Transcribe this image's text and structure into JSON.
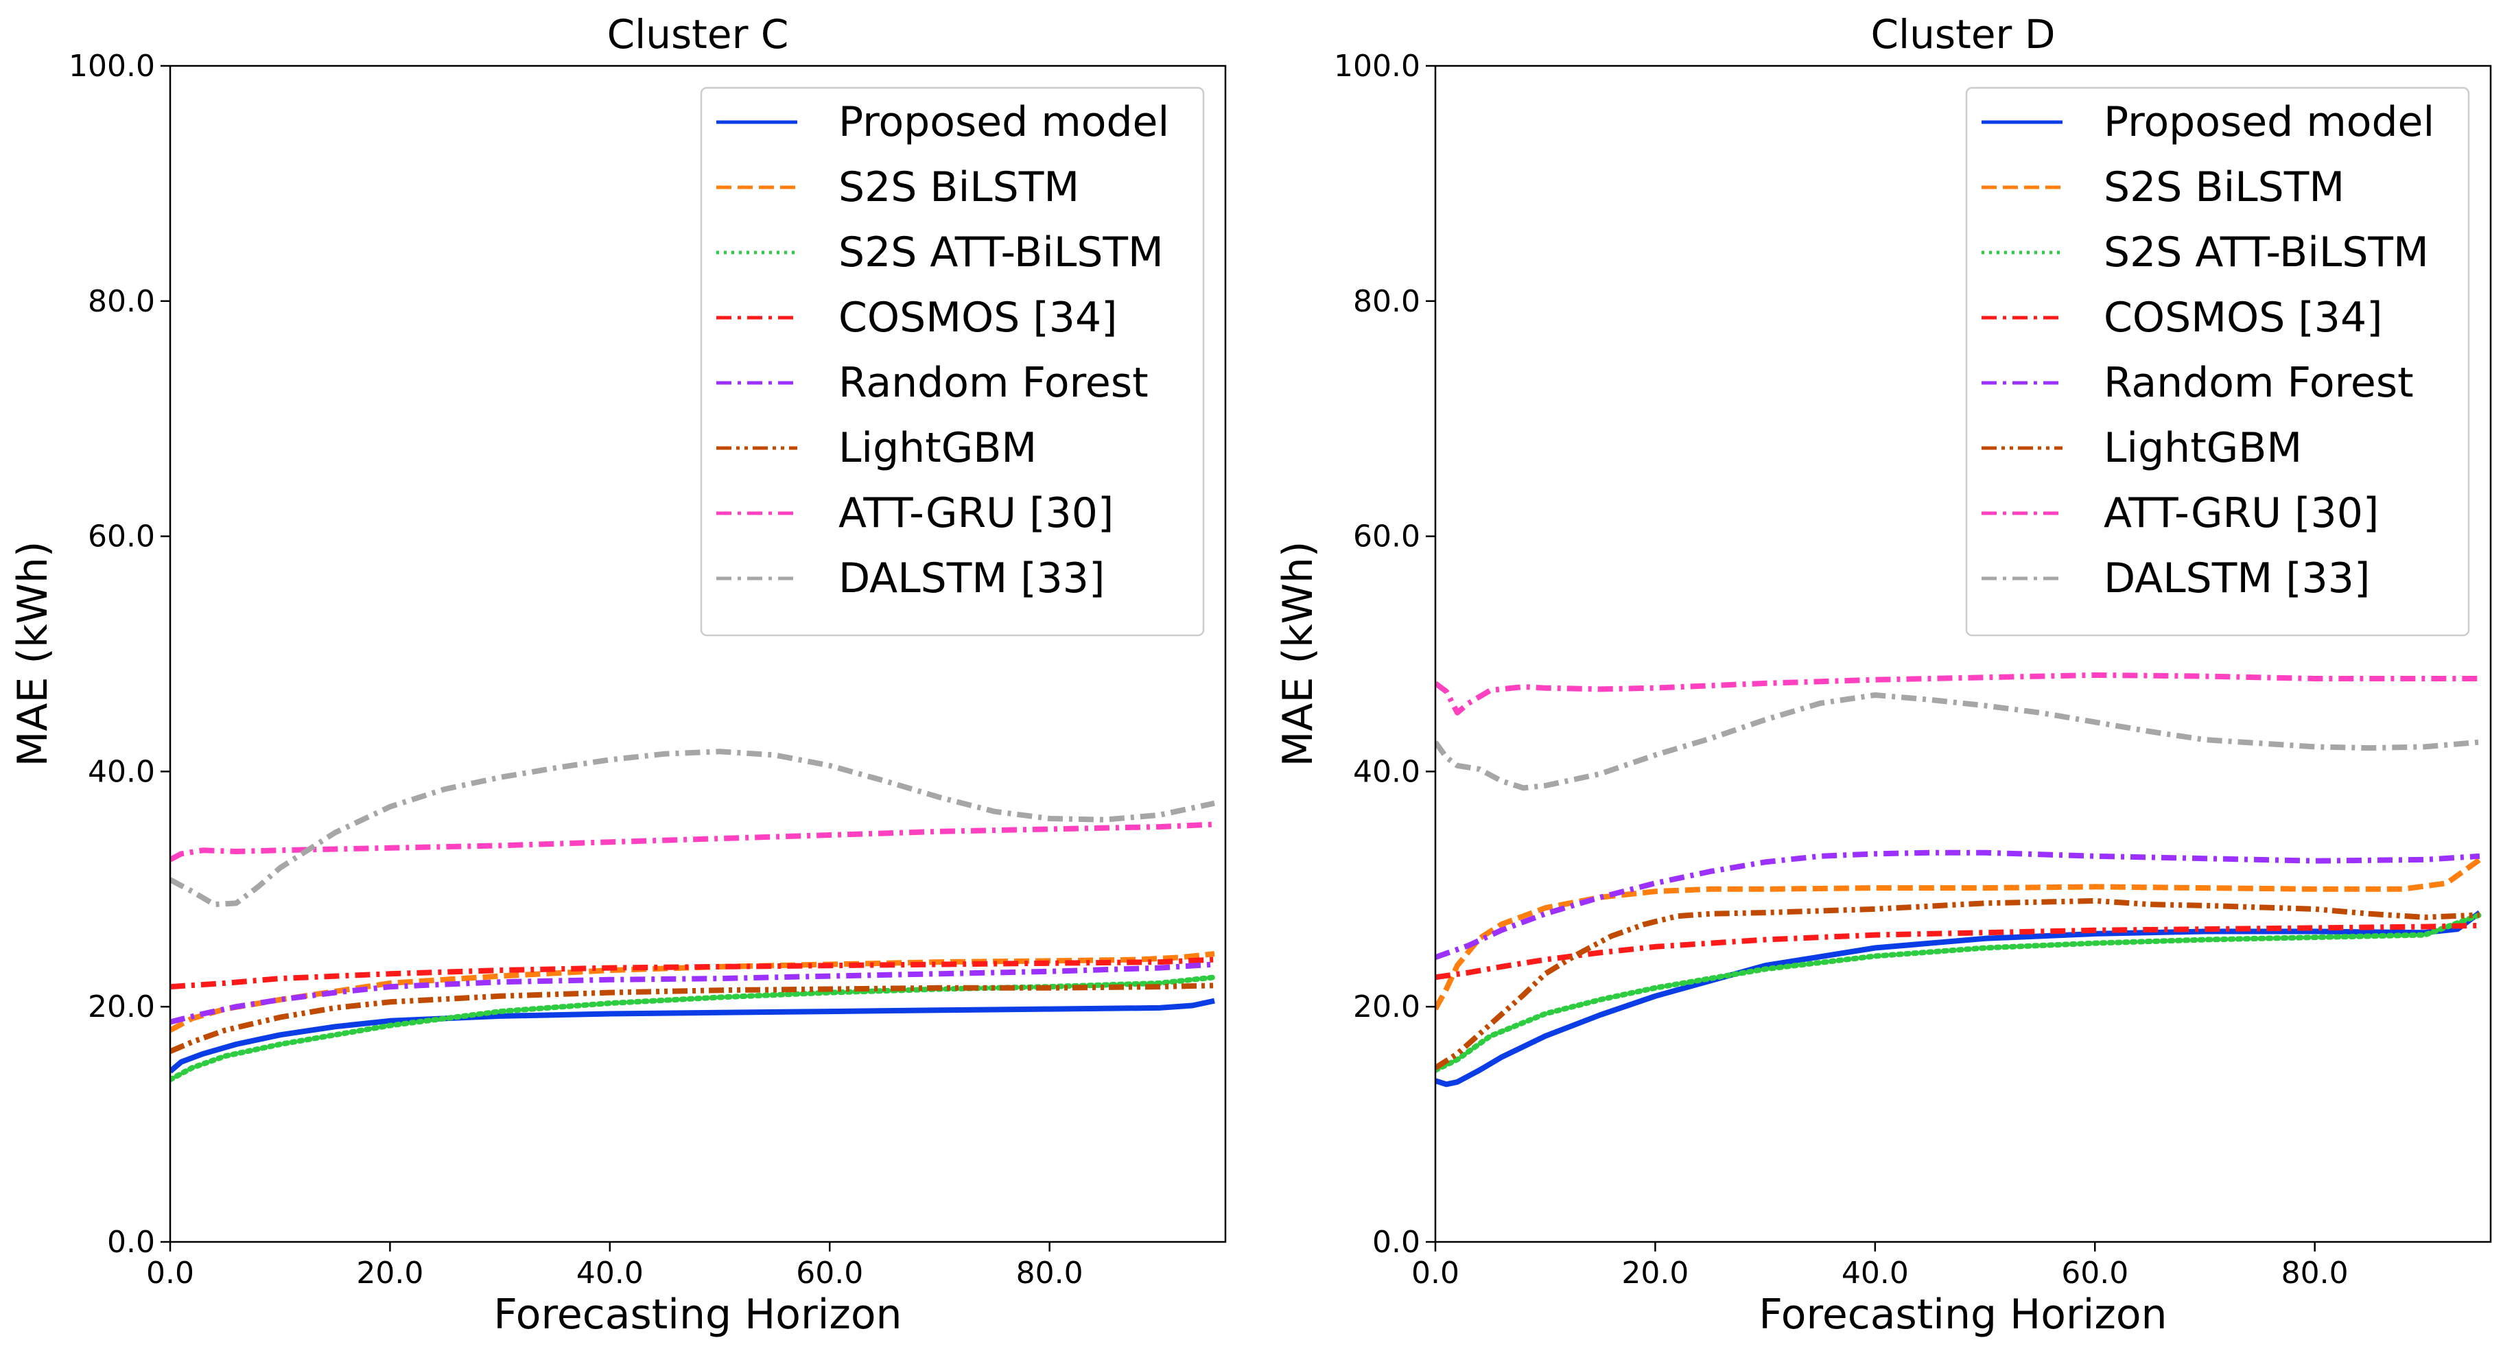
{
  "chart_data": [
    {
      "type": "line",
      "title": "Cluster C",
      "xlabel": "Forecasting Horizon",
      "ylabel": "MAE (kWh)",
      "xlim": [
        0,
        96
      ],
      "ylim": [
        0,
        100
      ],
      "xticks": [
        "0.0",
        "20.0",
        "40.0",
        "60.0",
        "80.0"
      ],
      "yticks": [
        "0.0",
        "20.0",
        "40.0",
        "60.0",
        "80.0",
        "100.0"
      ],
      "grid": false,
      "legend": "top-right",
      "series": [
        {
          "name": "Proposed model",
          "color": "#0a3de6",
          "style": "solid",
          "x": [
            0,
            1,
            3,
            6,
            10,
            15,
            20,
            30,
            40,
            50,
            60,
            70,
            80,
            90,
            93,
            95
          ],
          "y": [
            14.5,
            15.3,
            16.0,
            16.8,
            17.6,
            18.3,
            18.8,
            19.2,
            19.4,
            19.5,
            19.6,
            19.7,
            19.8,
            19.9,
            20.1,
            20.5
          ]
        },
        {
          "name": "S2S BiLSTM",
          "color": "#ff7f0e",
          "style": "dashed",
          "x": [
            0,
            2,
            5,
            10,
            15,
            20,
            30,
            40,
            50,
            60,
            70,
            80,
            88,
            92,
            95
          ],
          "y": [
            18.0,
            19.0,
            19.8,
            20.6,
            21.3,
            22.0,
            22.6,
            23.1,
            23.4,
            23.6,
            23.8,
            23.9,
            24.0,
            24.2,
            24.5
          ]
        },
        {
          "name": "S2S ATT-BiLSTM",
          "color": "#2ecc40",
          "style": "dotted",
          "x": [
            0,
            2,
            5,
            10,
            15,
            20,
            30,
            40,
            50,
            60,
            70,
            80,
            90,
            95
          ],
          "y": [
            13.8,
            14.8,
            15.8,
            16.8,
            17.6,
            18.4,
            19.6,
            20.3,
            20.8,
            21.2,
            21.5,
            21.7,
            22.0,
            22.5
          ]
        },
        {
          "name": "COSMOS [34]",
          "color": "#ff1a1a",
          "style": "dashdot",
          "x": [
            0,
            5,
            10,
            20,
            30,
            40,
            50,
            60,
            70,
            80,
            90,
            95
          ],
          "y": [
            21.7,
            22.0,
            22.4,
            22.8,
            23.1,
            23.3,
            23.4,
            23.5,
            23.6,
            23.7,
            23.8,
            24.0
          ]
        },
        {
          "name": "Random Forest",
          "color": "#9b30ff",
          "style": "dashdot",
          "x": [
            0,
            3,
            6,
            10,
            15,
            20,
            30,
            40,
            50,
            60,
            70,
            80,
            90,
            95
          ],
          "y": [
            18.7,
            19.4,
            20.0,
            20.6,
            21.2,
            21.7,
            22.1,
            22.3,
            22.4,
            22.6,
            22.8,
            23.0,
            23.3,
            23.6
          ]
        },
        {
          "name": "LightGBM",
          "color": "#c04a00",
          "style": "dashdotdot",
          "x": [
            0,
            2,
            5,
            10,
            15,
            20,
            30,
            40,
            50,
            60,
            70,
            80,
            90,
            95
          ],
          "y": [
            16.2,
            17.0,
            18.0,
            19.1,
            19.9,
            20.4,
            20.9,
            21.2,
            21.4,
            21.5,
            21.6,
            21.6,
            21.7,
            21.8
          ]
        },
        {
          "name": "ATT-GRU [30]",
          "color": "#ff40c0",
          "style": "dashdot",
          "x": [
            0,
            1,
            3,
            6,
            10,
            20,
            30,
            40,
            50,
            60,
            70,
            80,
            90,
            95
          ],
          "y": [
            32.5,
            33.0,
            33.3,
            33.2,
            33.3,
            33.5,
            33.7,
            34.0,
            34.3,
            34.6,
            34.9,
            35.1,
            35.3,
            35.5
          ]
        },
        {
          "name": "DALSTM [33]",
          "color": "#a6a6a6",
          "style": "dashdot",
          "x": [
            0,
            2,
            4,
            6,
            8,
            10,
            15,
            20,
            25,
            30,
            35,
            40,
            45,
            50,
            55,
            60,
            65,
            70,
            75,
            80,
            85,
            90,
            95
          ],
          "y": [
            30.8,
            29.8,
            28.7,
            28.8,
            30.2,
            31.8,
            34.8,
            37.0,
            38.5,
            39.5,
            40.3,
            41.0,
            41.5,
            41.7,
            41.4,
            40.5,
            39.2,
            37.8,
            36.6,
            36.0,
            35.9,
            36.3,
            37.3
          ]
        }
      ]
    },
    {
      "type": "line",
      "title": "Cluster D",
      "xlabel": "Forecasting Horizon",
      "ylabel": "MAE (kWh)",
      "xlim": [
        0,
        96
      ],
      "ylim": [
        0,
        100
      ],
      "xticks": [
        "0.0",
        "20.0",
        "40.0",
        "60.0",
        "80.0"
      ],
      "yticks": [
        "0.0",
        "20.0",
        "40.0",
        "60.0",
        "80.0",
        "100.0"
      ],
      "grid": false,
      "legend": "top-right",
      "series": [
        {
          "name": "Proposed model",
          "color": "#0a3de6",
          "style": "solid",
          "x": [
            0,
            1,
            2,
            4,
            6,
            10,
            15,
            20,
            30,
            40,
            50,
            60,
            70,
            80,
            90,
            93,
            95
          ],
          "y": [
            13.7,
            13.4,
            13.6,
            14.6,
            15.7,
            17.5,
            19.3,
            20.9,
            23.5,
            25.0,
            25.8,
            26.2,
            26.4,
            26.4,
            26.3,
            26.6,
            28.0
          ]
        },
        {
          "name": "S2S BiLSTM",
          "color": "#ff7f0e",
          "style": "dashed",
          "x": [
            0,
            1,
            2,
            4,
            6,
            10,
            15,
            20,
            25,
            30,
            40,
            50,
            60,
            70,
            80,
            88,
            92,
            95
          ],
          "y": [
            19.8,
            21.5,
            23.5,
            25.8,
            27.0,
            28.4,
            29.3,
            29.8,
            30.0,
            30.0,
            30.1,
            30.1,
            30.2,
            30.1,
            30.0,
            30.0,
            30.5,
            32.5
          ]
        },
        {
          "name": "S2S ATT-BiLSTM",
          "color": "#2ecc40",
          "style": "dotted",
          "x": [
            0,
            2,
            5,
            10,
            15,
            20,
            30,
            40,
            50,
            60,
            70,
            80,
            90,
            95
          ],
          "y": [
            14.6,
            15.5,
            17.5,
            19.4,
            20.6,
            21.6,
            23.2,
            24.3,
            25.0,
            25.4,
            25.7,
            25.9,
            26.1,
            27.8
          ]
        },
        {
          "name": "COSMOS [34]",
          "color": "#ff1a1a",
          "style": "dashdot",
          "x": [
            0,
            3,
            6,
            10,
            15,
            20,
            30,
            40,
            50,
            60,
            70,
            80,
            90,
            95
          ],
          "y": [
            22.5,
            22.9,
            23.4,
            24.0,
            24.6,
            25.1,
            25.7,
            26.1,
            26.3,
            26.5,
            26.6,
            26.7,
            26.8,
            26.9
          ]
        },
        {
          "name": "Random Forest",
          "color": "#9b30ff",
          "style": "dashdot",
          "x": [
            0,
            3,
            6,
            10,
            15,
            20,
            25,
            30,
            35,
            40,
            45,
            50,
            60,
            70,
            80,
            90,
            95
          ],
          "y": [
            24.2,
            25.2,
            26.5,
            27.9,
            29.3,
            30.5,
            31.5,
            32.3,
            32.8,
            33.0,
            33.1,
            33.1,
            32.8,
            32.6,
            32.4,
            32.5,
            32.8
          ]
        },
        {
          "name": "LightGBM",
          "color": "#c04a00",
          "style": "dashdotdot",
          "x": [
            0,
            2,
            5,
            8,
            10,
            13,
            16,
            19,
            22,
            25,
            30,
            40,
            50,
            60,
            65,
            70,
            80,
            85,
            90,
            95
          ],
          "y": [
            14.8,
            16.0,
            18.5,
            21.0,
            22.8,
            24.5,
            26.0,
            27.0,
            27.7,
            27.9,
            28.0,
            28.3,
            28.8,
            29.0,
            28.7,
            28.6,
            28.3,
            27.9,
            27.6,
            27.8
          ]
        },
        {
          "name": "ATT-GRU [30]",
          "color": "#ff40c0",
          "style": "dashdot",
          "x": [
            0,
            1,
            2,
            3,
            5,
            8,
            10,
            15,
            20,
            30,
            40,
            50,
            60,
            70,
            80,
            90,
            95
          ],
          "y": [
            47.5,
            46.8,
            45.0,
            45.8,
            46.9,
            47.2,
            47.1,
            47.0,
            47.1,
            47.5,
            47.8,
            48.0,
            48.2,
            48.1,
            47.9,
            47.9,
            47.9
          ]
        },
        {
          "name": "DALSTM [33]",
          "color": "#a6a6a6",
          "style": "dashdot",
          "x": [
            0,
            1,
            2,
            4,
            6,
            8,
            10,
            15,
            20,
            25,
            30,
            35,
            40,
            45,
            50,
            55,
            60,
            65,
            70,
            75,
            80,
            85,
            90,
            95
          ],
          "y": [
            42.5,
            41.2,
            40.5,
            40.2,
            39.2,
            38.6,
            38.8,
            39.8,
            41.4,
            42.8,
            44.4,
            45.8,
            46.5,
            46.1,
            45.6,
            45.0,
            44.2,
            43.4,
            42.7,
            42.4,
            42.1,
            42.0,
            42.1,
            42.5
          ]
        }
      ]
    }
  ]
}
